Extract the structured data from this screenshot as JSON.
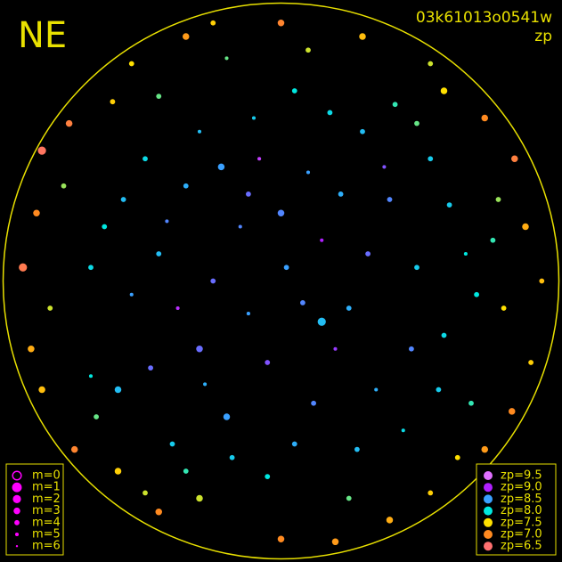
{
  "chart_data": {
    "type": "scatter",
    "title": "NE",
    "image_id": "03k61013o0541w",
    "color_label": "zp",
    "xlim": [
      -1,
      1
    ],
    "ylim": [
      -1,
      1
    ],
    "border_color": "#e8e000",
    "points": {
      "x": [
        0.02,
        -0.15,
        0.25,
        -0.3,
        0.1,
        -0.45,
        0.4,
        -0.2,
        0.35,
        -0.05,
        0.5,
        -0.55,
        0.15,
        -0.35,
        0.3,
        -0.1,
        0.6,
        -0.6,
        0.05,
        -0.25,
        0.2,
        -0.4,
        0.45,
        0.55,
        -0.5,
        0.0,
        -0.12,
        0.32,
        -0.3,
        0.12,
        -0.65,
        0.68,
        0.05,
        -0.05,
        0.42,
        -0.45,
        0.7,
        -0.7,
        -0.38,
        0.22,
        0.8,
        -0.8,
        0.25,
        -0.3,
        0.82,
        -0.85,
        0.1,
        -0.2,
        0.6,
        -0.62,
        0.65,
        -0.6,
        0.9,
        -0.9,
        0.3,
        -0.35,
        0.4,
        -0.45,
        0.92,
        -0.88,
        0.75,
        -0.78,
        0.75,
        -0.76,
        0.0,
        0.0,
        0.96,
        -0.95,
        0.55,
        -0.55,
        0.55,
        -0.5,
        0.15,
        -0.22,
        0.48,
        -0.48,
        0.38,
        -0.08,
        0.62,
        -0.7,
        0.18,
        -0.18,
        0.72,
        -0.28,
        0.08,
        -0.58,
        0.28,
        -0.42,
        0.58,
        -0.12,
        -0.88,
        0.86,
        -0.92,
        0.85,
        -0.25,
        0.2,
        -0.68,
        0.5,
        -0.35,
        0.78
      ],
      "y": [
        0.05,
        0.2,
        -0.1,
        -0.25,
        0.4,
        0.1,
        0.3,
        -0.5,
        -0.4,
        -0.3,
        0.05,
        -0.05,
        0.15,
        0.35,
        0.55,
        0.6,
        -0.2,
        -0.4,
        -0.6,
        0.0,
        -0.25,
        -0.6,
        -0.55,
        0.45,
        0.45,
        0.25,
        -0.12,
        0.1,
        0.55,
        -0.45,
        0.2,
        0.1,
        0.7,
        -0.72,
        0.65,
        0.68,
        -0.45,
        -0.35,
        -0.1,
        0.32,
        0.3,
        0.35,
        -0.8,
        -0.8,
        -0.1,
        -0.1,
        0.85,
        0.82,
        0.7,
        0.66,
        -0.65,
        -0.7,
        0.2,
        0.25,
        0.9,
        0.9,
        -0.88,
        -0.85,
        -0.3,
        -0.4,
        0.6,
        0.58,
        -0.62,
        -0.62,
        0.95,
        -0.95,
        0.0,
        0.05,
        0.8,
        0.8,
        -0.78,
        -0.78,
        -0.15,
        0.42,
        -0.25,
        -0.32,
        0.42,
        0.45,
        0.28,
        0.05,
        0.62,
        -0.65,
        -0.05,
        -0.38,
        -0.08,
        0.3,
        -0.62,
        0.22,
        -0.4,
        0.32,
        0.48,
        0.45,
        -0.25,
        -0.48,
        0.95,
        -0.96,
        -0.5,
        0.58,
        -0.7,
        0.15
      ],
      "zp": [
        8.5,
        8.6,
        8.4,
        8.7,
        8.5,
        8.3,
        8.6,
        8.5,
        8.4,
        8.8,
        8.2,
        8.5,
        9.0,
        8.4,
        8.3,
        8.2,
        8.1,
        8.3,
        8.4,
        8.7,
        8.9,
        8.2,
        8.1,
        8.2,
        8.1,
        8.6,
        8.5,
        8.7,
        8.3,
        8.6,
        8.0,
        8.0,
        8.0,
        8.0,
        7.9,
        7.8,
        7.9,
        8.0,
        9.1,
        8.4,
        7.7,
        7.7,
        7.8,
        7.6,
        7.5,
        7.6,
        7.6,
        7.8,
        7.5,
        7.4,
        7.5,
        7.4,
        7.2,
        7.0,
        7.3,
        7.1,
        7.2,
        7.0,
        7.4,
        7.3,
        7.0,
        6.8,
        7.1,
        6.9,
        6.9,
        7.0,
        7.3,
        6.7,
        7.6,
        7.5,
        7.4,
        7.6,
        8.3,
        8.5,
        8.6,
        8.7,
        8.8,
        9.2,
        8.2,
        8.1,
        8.1,
        8.2,
        8.0,
        8.4,
        8.6,
        8.3,
        8.3,
        8.6,
        8.2,
        8.7,
        6.6,
        6.8,
        7.2,
        7.0,
        7.4,
        7.1,
        7.8,
        7.8,
        7.9,
        7.9
      ],
      "m": [
        4,
        5,
        4,
        3,
        5,
        4,
        4,
        3,
        5,
        4,
        4,
        5,
        5,
        4,
        4,
        5,
        4,
        3,
        4,
        4,
        5,
        4,
        5,
        4,
        4,
        3,
        5,
        4,
        5,
        4,
        4,
        5,
        4,
        4,
        4,
        4,
        4,
        5,
        5,
        4,
        4,
        4,
        4,
        3,
        4,
        4,
        4,
        5,
        3,
        4,
        4,
        3,
        3,
        3,
        3,
        3,
        3,
        3,
        4,
        3,
        3,
        3,
        3,
        3,
        3,
        3,
        4,
        2,
        4,
        4,
        4,
        4,
        2,
        3,
        4,
        4,
        5,
        5,
        4,
        4,
        4,
        4,
        4,
        5,
        4,
        4,
        4,
        5,
        4,
        4,
        2,
        3,
        3,
        3,
        4,
        3,
        4,
        4,
        4,
        4
      ]
    },
    "m_legend": [
      {
        "label": "m=0",
        "m": 0
      },
      {
        "label": "m=1",
        "m": 1
      },
      {
        "label": "m=2",
        "m": 2
      },
      {
        "label": "m=3",
        "m": 3
      },
      {
        "label": "m=4",
        "m": 4
      },
      {
        "label": "m=5",
        "m": 5
      },
      {
        "label": "m=6",
        "m": 6
      }
    ],
    "m_legend_color": "#ff00ff",
    "zp_legend": [
      {
        "label": "zp=9.5",
        "zp": 9.5,
        "color": "#e070ff"
      },
      {
        "label": "zp=9.0",
        "zp": 9.0,
        "color": "#b020ff"
      },
      {
        "label": "zp=8.5",
        "zp": 8.5,
        "color": "#3aa0ff"
      },
      {
        "label": "zp=8.0",
        "zp": 8.0,
        "color": "#00e8e0"
      },
      {
        "label": "zp=7.5",
        "zp": 7.5,
        "color": "#ffe000"
      },
      {
        "label": "zp=7.0",
        "zp": 7.0,
        "color": "#ff8a20"
      },
      {
        "label": "zp=6.5",
        "zp": 6.5,
        "color": "#ff7070"
      }
    ]
  }
}
